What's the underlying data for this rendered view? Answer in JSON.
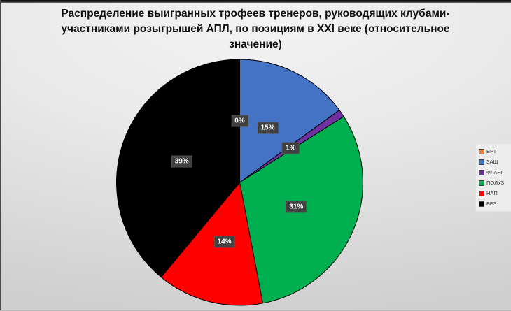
{
  "chart_data": {
    "type": "pie",
    "title": "Распределение выигранных трофеев тренеров, руководящих клубами-участниками розыгрышей АПЛ, по позициям в XXI веке (относительное значение)",
    "categories": [
      "ВРТ",
      "ЗАЩ",
      "ФЛАНГ",
      "ПОЛУЗ",
      "НАП",
      "БЕЗ"
    ],
    "values": [
      0,
      15,
      1,
      31,
      14,
      39
    ],
    "value_unit": "percent",
    "slice_labels": [
      "0%",
      "15%",
      "1%",
      "31%",
      "14%",
      "39%"
    ],
    "colors": [
      "#ED7D31",
      "#4472C4",
      "#7030A0",
      "#00B050",
      "#FF0000",
      "#000000"
    ],
    "start_angle_deg": 0,
    "direction": "clockwise",
    "legend_position": "right",
    "slice_outline_color": "#000000",
    "label_style": {
      "background": "#404040",
      "text_color": "#FFFFFF"
    }
  }
}
